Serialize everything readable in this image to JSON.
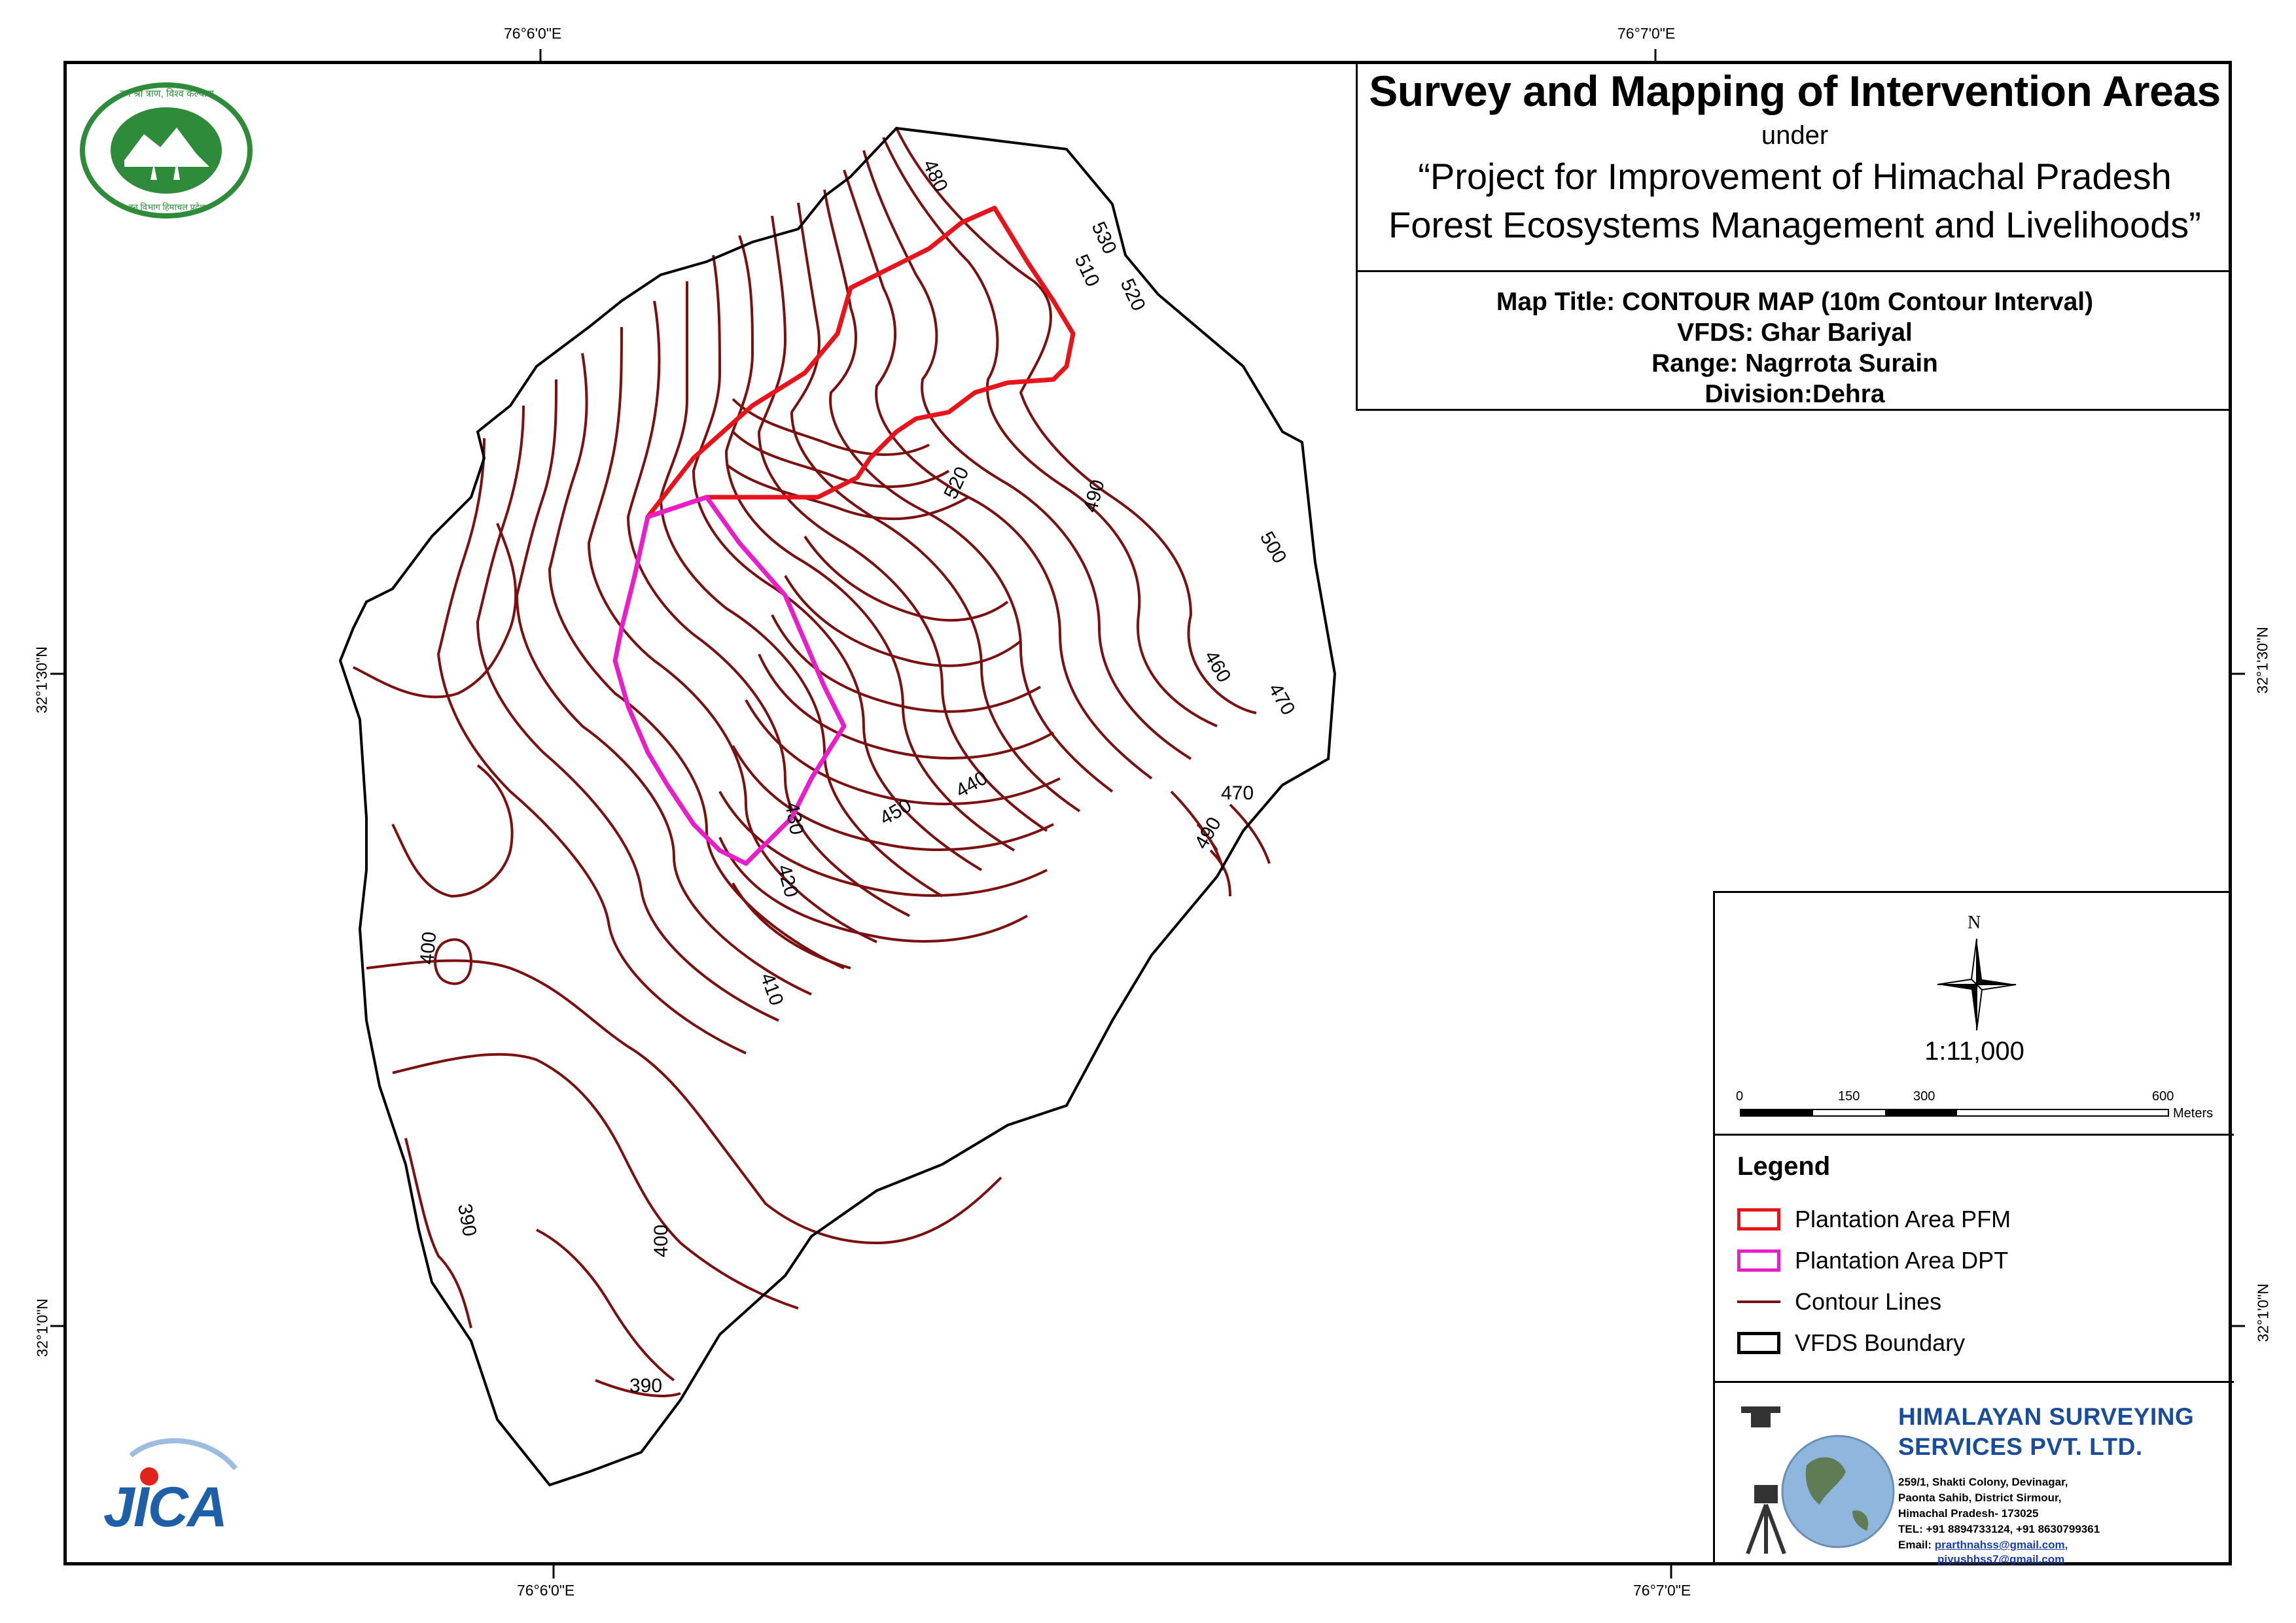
{
  "title": {
    "main": "Survey and Mapping of Intervention Areas",
    "under": "under",
    "project_line1": "“Project for Improvement of Himachal Pradesh",
    "project_line2": "Forest Ecosystems Management and Livelihoods”"
  },
  "info": {
    "map_title": "Map Title: CONTOUR MAP (10m Contour Interval)",
    "vfds": "VFDS: Ghar Bariyal",
    "range": "Range: Nagrrota Surain",
    "division": "Division:Dehra"
  },
  "grid_labels": {
    "top_left": "76°6'0\"E",
    "top_right": "76°7'0\"E",
    "bottom_left": "76°6'0\"E",
    "bottom_right": "76°7'0\"E",
    "left_upper": "32°1'30\"N",
    "left_lower": "32°1'0\"N",
    "right_upper": "32°1'30\"N",
    "right_lower": "32°1'0\"N"
  },
  "north_arrow": {
    "label": "N"
  },
  "scale": {
    "ratio": "1:11,000",
    "ticks": [
      "0",
      "150",
      "300",
      "600"
    ],
    "unit": "Meters"
  },
  "legend": {
    "title": "Legend",
    "items": [
      {
        "label": "Plantation Area PFM",
        "color": "#e8141b",
        "kind": "box"
      },
      {
        "label": "Plantation Area DPT",
        "color": "#e81ec8",
        "kind": "box"
      },
      {
        "label": "Contour Lines",
        "color": "#7a1010",
        "kind": "line"
      },
      {
        "label": "VFDS Boundary",
        "color": "#000000",
        "kind": "box"
      }
    ]
  },
  "company": {
    "name_line1": "HIMALAYAN SURVEYING",
    "name_line2": "SERVICES PVT. LTD.",
    "addr1": "259/1, Shakti Colony, Devinagar,",
    "addr2": "Paonta Sahib, District Sirmour,",
    "addr3": "Himachal Pradesh- 173025",
    "tel": "TEL: +91 8894733124, +91 8630799361",
    "email_label": "Email:",
    "email1": "prarthnahss@gmail.com,",
    "email2": "piyushhss7@gmail.com"
  },
  "logos": {
    "forest_dept_top": "वन श्री त्राण, विश्व कल्याण",
    "forest_dept_bottom": "वन विभाग हिमाचल प्रदेश",
    "jica": "JICA"
  },
  "contour_labels": [
    "480",
    "530",
    "510",
    "520",
    "520",
    "490",
    "500",
    "460",
    "470",
    "470",
    "490",
    "450",
    "440",
    "430",
    "420",
    "410",
    "400",
    "390",
    "400",
    "390"
  ],
  "colors": {
    "contour": "#7a1010",
    "pfm": "#e8141b",
    "dpt": "#e81ec8",
    "boundary": "#000000",
    "company_blue": "#1a4c9c"
  }
}
